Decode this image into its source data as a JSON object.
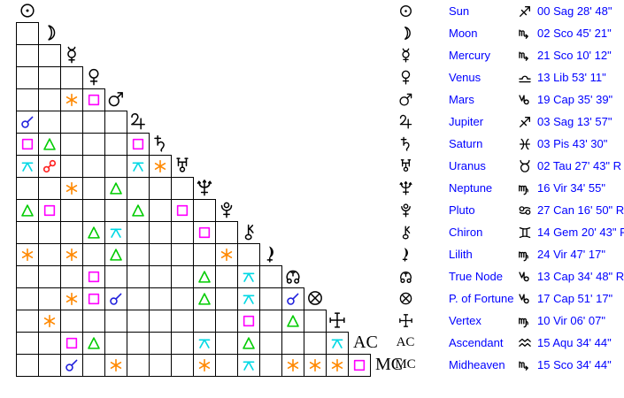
{
  "background": "#ffffff",
  "text_color": "#0000ff",
  "glyph_color": "#000000",
  "grid_line_color": "#000000",
  "aspect_colors": {
    "conjunction": "#2222dd",
    "opposition": "#ff2222",
    "square": "#ff00ff",
    "trine": "#00cc00",
    "sextile": "#ff8800",
    "quincunx": "#00d8e4"
  },
  "bodies": [
    {
      "id": "sun",
      "name": "Sun",
      "sign": "sag",
      "position": "00 Sag 28' 48\""
    },
    {
      "id": "moon",
      "name": "Moon",
      "sign": "sco",
      "position": "02 Sco 45' 21\""
    },
    {
      "id": "mercury",
      "name": "Mercury",
      "sign": "sco",
      "position": "21 Sco 10' 12\""
    },
    {
      "id": "venus",
      "name": "Venus",
      "sign": "lib",
      "position": "13 Lib 53' 11\""
    },
    {
      "id": "mars",
      "name": "Mars",
      "sign": "cap",
      "position": "19 Cap 35' 39\""
    },
    {
      "id": "jupiter",
      "name": "Jupiter",
      "sign": "sag",
      "position": "03 Sag 13' 57\""
    },
    {
      "id": "saturn",
      "name": "Saturn",
      "sign": "pis",
      "position": "03 Pis 43' 30\""
    },
    {
      "id": "uranus",
      "name": "Uranus",
      "sign": "tau",
      "position": "02 Tau 27' 43\" R"
    },
    {
      "id": "neptune",
      "name": "Neptune",
      "sign": "vir",
      "position": "16 Vir 34' 55\""
    },
    {
      "id": "pluto",
      "name": "Pluto",
      "sign": "can",
      "position": "27 Can 16' 50\" R"
    },
    {
      "id": "chiron",
      "name": "Chiron",
      "sign": "gem",
      "position": "14 Gem 20' 43\" R"
    },
    {
      "id": "lilith",
      "name": "Lilith",
      "sign": "vir",
      "position": "24 Vir 47' 17\""
    },
    {
      "id": "truenode",
      "name": "True Node",
      "sign": "cap",
      "position": "13 Cap 34' 48\" R"
    },
    {
      "id": "fortune",
      "name": "P. of Fortune",
      "sign": "cap",
      "position": "17 Cap 51' 17\""
    },
    {
      "id": "vertex",
      "name": "Vertex",
      "sign": "vir",
      "position": "10 Vir 06' 07\""
    },
    {
      "id": "ac",
      "name": "Ascendant",
      "sign": "aqu",
      "position": "15 Aqu 34' 44\"",
      "axis_label": "AC"
    },
    {
      "id": "mc",
      "name": "Midheaven",
      "sign": "sco",
      "position": "15 Sco 34' 44\"",
      "axis_label": "MC"
    }
  ],
  "aspects": [
    {
      "row": 4,
      "col": 2,
      "type": "sextile"
    },
    {
      "row": 4,
      "col": 3,
      "type": "square"
    },
    {
      "row": 5,
      "col": 0,
      "type": "conjunction"
    },
    {
      "row": 6,
      "col": 0,
      "type": "square"
    },
    {
      "row": 6,
      "col": 1,
      "type": "trine"
    },
    {
      "row": 6,
      "col": 5,
      "type": "square"
    },
    {
      "row": 7,
      "col": 0,
      "type": "quincunx"
    },
    {
      "row": 7,
      "col": 1,
      "type": "opposition"
    },
    {
      "row": 7,
      "col": 5,
      "type": "quincunx"
    },
    {
      "row": 7,
      "col": 6,
      "type": "sextile"
    },
    {
      "row": 8,
      "col": 2,
      "type": "sextile"
    },
    {
      "row": 8,
      "col": 4,
      "type": "trine"
    },
    {
      "row": 9,
      "col": 0,
      "type": "trine"
    },
    {
      "row": 9,
      "col": 1,
      "type": "square"
    },
    {
      "row": 9,
      "col": 5,
      "type": "trine"
    },
    {
      "row": 9,
      "col": 7,
      "type": "square"
    },
    {
      "row": 10,
      "col": 3,
      "type": "trine"
    },
    {
      "row": 10,
      "col": 4,
      "type": "quincunx"
    },
    {
      "row": 10,
      "col": 8,
      "type": "square"
    },
    {
      "row": 11,
      "col": 0,
      "type": "sextile"
    },
    {
      "row": 11,
      "col": 2,
      "type": "sextile"
    },
    {
      "row": 11,
      "col": 4,
      "type": "trine"
    },
    {
      "row": 11,
      "col": 9,
      "type": "sextile"
    },
    {
      "row": 12,
      "col": 3,
      "type": "square"
    },
    {
      "row": 12,
      "col": 8,
      "type": "trine"
    },
    {
      "row": 12,
      "col": 10,
      "type": "quincunx"
    },
    {
      "row": 13,
      "col": 2,
      "type": "sextile"
    },
    {
      "row": 13,
      "col": 3,
      "type": "square"
    },
    {
      "row": 13,
      "col": 4,
      "type": "conjunction"
    },
    {
      "row": 13,
      "col": 8,
      "type": "trine"
    },
    {
      "row": 13,
      "col": 10,
      "type": "quincunx"
    },
    {
      "row": 13,
      "col": 12,
      "type": "conjunction"
    },
    {
      "row": 14,
      "col": 1,
      "type": "sextile"
    },
    {
      "row": 14,
      "col": 10,
      "type": "square"
    },
    {
      "row": 14,
      "col": 12,
      "type": "trine"
    },
    {
      "row": 15,
      "col": 2,
      "type": "square"
    },
    {
      "row": 15,
      "col": 3,
      "type": "trine"
    },
    {
      "row": 15,
      "col": 8,
      "type": "quincunx"
    },
    {
      "row": 15,
      "col": 10,
      "type": "trine"
    },
    {
      "row": 15,
      "col": 14,
      "type": "quincunx"
    },
    {
      "row": 16,
      "col": 2,
      "type": "conjunction"
    },
    {
      "row": 16,
      "col": 4,
      "type": "sextile"
    },
    {
      "row": 16,
      "col": 8,
      "type": "sextile"
    },
    {
      "row": 16,
      "col": 10,
      "type": "quincunx"
    },
    {
      "row": 16,
      "col": 12,
      "type": "sextile"
    },
    {
      "row": 16,
      "col": 13,
      "type": "sextile"
    },
    {
      "row": 16,
      "col": 14,
      "type": "sextile"
    },
    {
      "row": 16,
      "col": 15,
      "type": "square"
    }
  ]
}
